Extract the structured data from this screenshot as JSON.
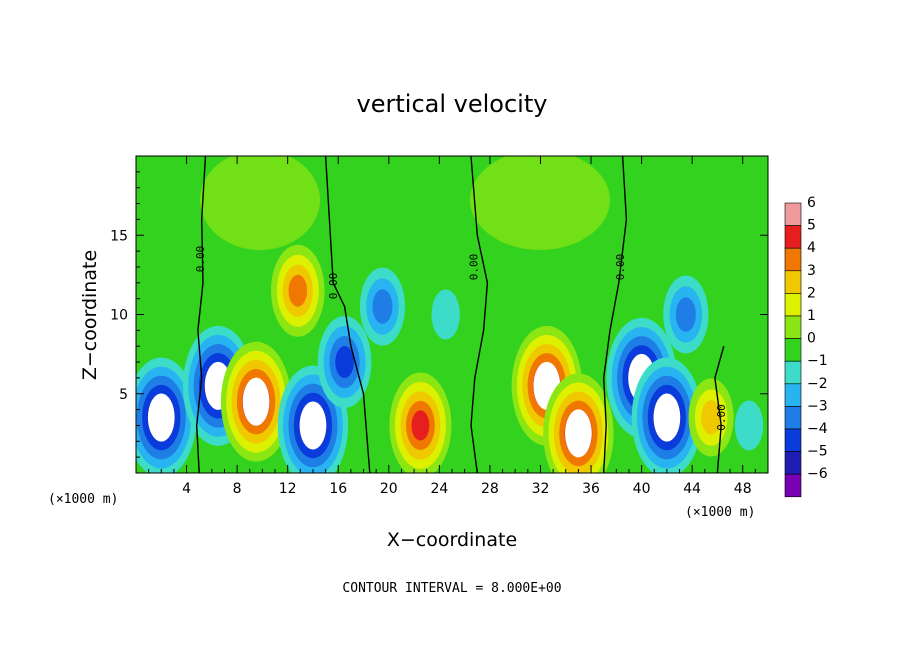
{
  "chart_data": {
    "type": "heatmap",
    "title": "vertical velocity",
    "xlabel": "X−coordinate",
    "ylabel": "Z−coordinate",
    "x_unit_left": "(×1000 m)",
    "x_unit_right": "(×1000 m)",
    "footer": "CONTOUR INTERVAL = 8.000E+00",
    "xlim": [
      0,
      50
    ],
    "ylim": [
      0,
      20
    ],
    "x_ticks": [
      4,
      8,
      12,
      16,
      20,
      24,
      28,
      32,
      36,
      40,
      44,
      48
    ],
    "y_ticks": [
      5,
      10,
      15
    ],
    "colorbar": {
      "ticks": [
        "6",
        "5",
        "4",
        "3",
        "2",
        "1",
        "0",
        "−1",
        "−2",
        "−3",
        "−4",
        "−5",
        "−6"
      ],
      "levels": [
        -6,
        -5,
        -4,
        -3,
        -2,
        -1,
        0,
        1,
        2,
        3,
        4,
        5,
        6
      ],
      "colors": [
        "#7a00b4",
        "#1e1eb4",
        "#0a3cdc",
        "#1e7ee6",
        "#28b4f0",
        "#3cdcc8",
        "#32d21e",
        "#8ce614",
        "#dcf000",
        "#f0c800",
        "#f07800",
        "#e61e1e",
        "#f09b9b"
      ]
    },
    "contour_label": "0.00",
    "cells": [
      {
        "x": 2.0,
        "z": 3.5,
        "w": -6
      },
      {
        "x": 6.5,
        "z": 5.5,
        "w": -6
      },
      {
        "x": 9.5,
        "z": 4.5,
        "w": 6
      },
      {
        "x": 14.0,
        "z": 3.0,
        "w": -6
      },
      {
        "x": 12.8,
        "z": 11.5,
        "w": 4
      },
      {
        "x": 16.5,
        "z": 7.0,
        "w": -4
      },
      {
        "x": 19.5,
        "z": 10.5,
        "w": -3
      },
      {
        "x": 22.5,
        "z": 3.0,
        "w": 5
      },
      {
        "x": 24.5,
        "z": 10.0,
        "w": -1
      },
      {
        "x": 32.5,
        "z": 5.5,
        "w": 6
      },
      {
        "x": 35.0,
        "z": 2.5,
        "w": 6
      },
      {
        "x": 40.0,
        "z": 6.0,
        "w": -6
      },
      {
        "x": 42.0,
        "z": 3.5,
        "w": -6
      },
      {
        "x": 43.5,
        "z": 10.0,
        "w": -3
      },
      {
        "x": 45.5,
        "z": 3.5,
        "w": 3
      },
      {
        "x": 48.5,
        "z": 3.0,
        "w": -1
      }
    ]
  }
}
